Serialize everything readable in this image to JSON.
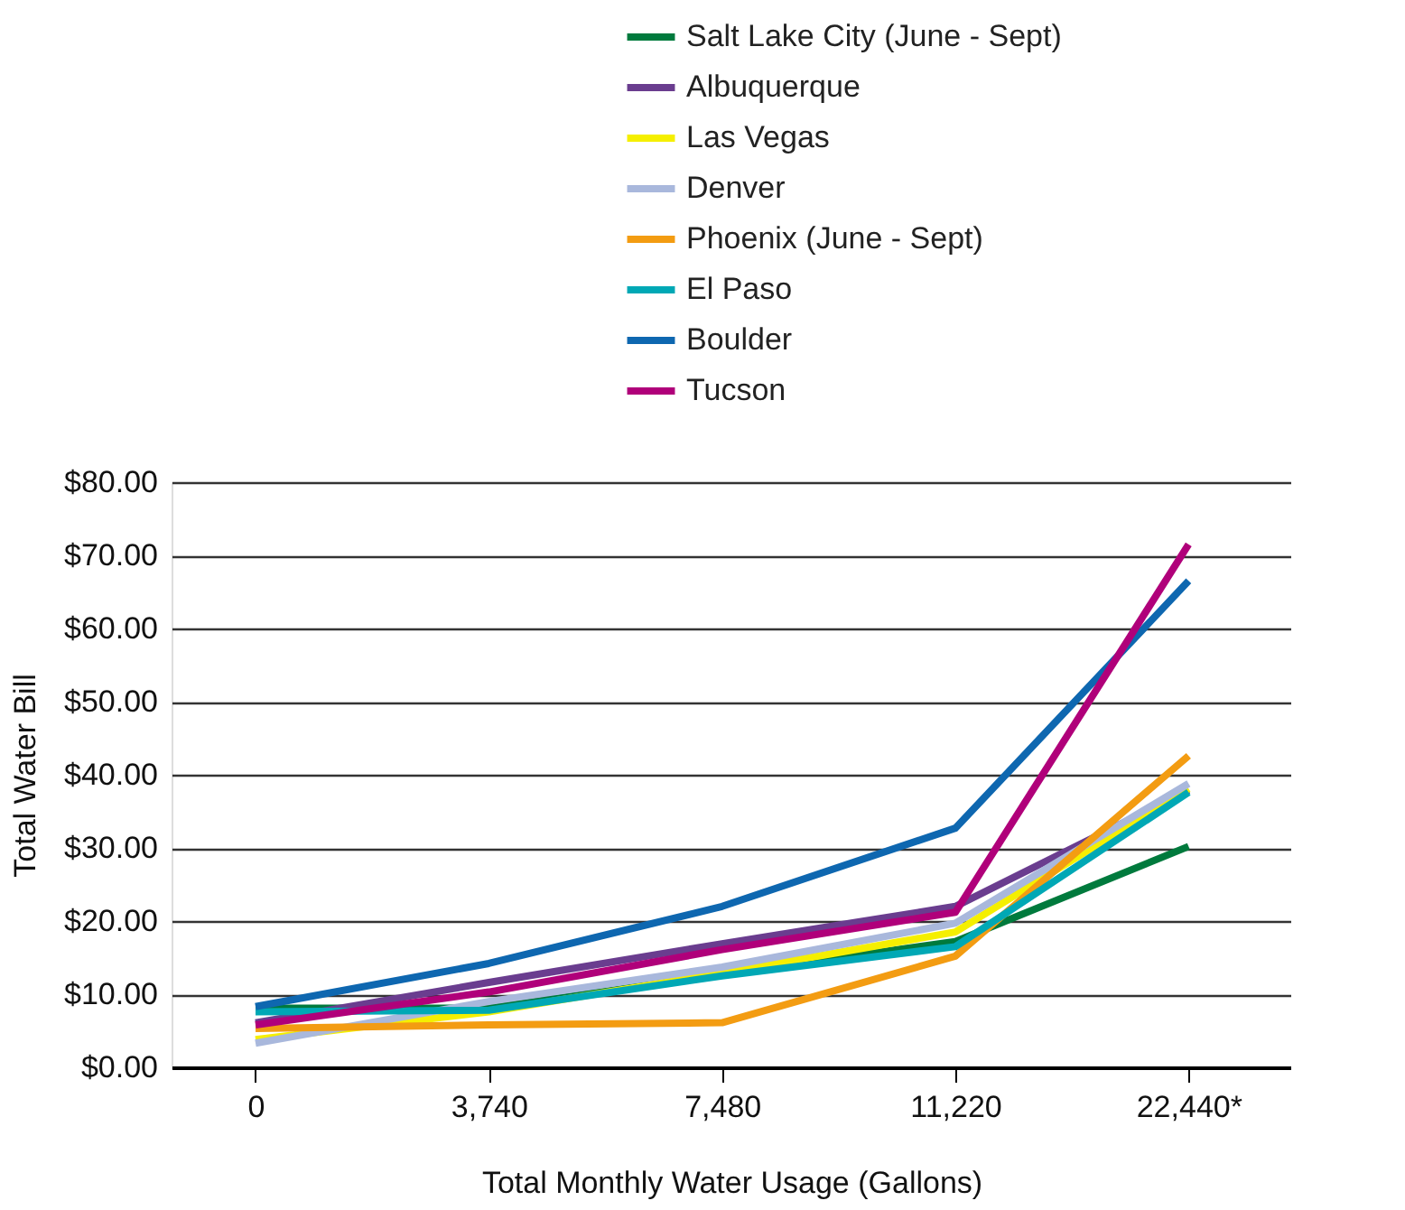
{
  "chart_data": {
    "type": "line",
    "xlabel": "Total Monthly Water Usage (Gallons)",
    "ylabel": "Total Water Bill",
    "categories": [
      "0",
      "3,740",
      "7,480",
      "11,220",
      "22,440*"
    ],
    "ylim": [
      0,
      80
    ],
    "yticks": [
      {
        "value": 0,
        "label": "$0.00"
      },
      {
        "value": 10,
        "label": "$10.00"
      },
      {
        "value": 20,
        "label": "$20.00"
      },
      {
        "value": 30,
        "label": "$30.00"
      },
      {
        "value": 40,
        "label": "$40.00"
      },
      {
        "value": 50,
        "label": "$50.00"
      },
      {
        "value": 60,
        "label": "$60.00"
      },
      {
        "value": 70,
        "label": "$70.00"
      },
      {
        "value": 80,
        "label": "$80.00"
      }
    ],
    "grid": "y",
    "legend": "top right",
    "marker": "none",
    "line_style": "solid",
    "series": [
      {
        "name": "Salt Lake City (June - Sept)",
        "color": "#007a3d",
        "values": [
          8.1,
          8.1,
          12.7,
          17.2,
          30.2
        ]
      },
      {
        "name": "Albuquerque",
        "color": "#6a3d8f",
        "values": [
          6.1,
          11.6,
          16.9,
          22.0,
          37.9
        ]
      },
      {
        "name": "Las Vegas",
        "color": "#f5ef00",
        "values": [
          3.8,
          7.6,
          12.9,
          18.5,
          38.1
        ]
      },
      {
        "name": "Denver",
        "color": "#a9b8dc",
        "values": [
          3.3,
          9.0,
          13.7,
          19.7,
          38.8
        ]
      },
      {
        "name": "Phoenix (June - Sept)",
        "color": "#f39c12",
        "values": [
          5.3,
          5.8,
          6.1,
          15.2,
          42.6
        ]
      },
      {
        "name": "El Paso",
        "color": "#00a8b5",
        "values": [
          7.6,
          7.8,
          12.5,
          16.5,
          37.6
        ]
      },
      {
        "name": "Boulder",
        "color": "#0e67b0",
        "values": [
          8.3,
          14.2,
          22.0,
          32.7,
          66.5
        ]
      },
      {
        "name": "Tucson",
        "color": "#b0007a",
        "values": [
          5.8,
          10.3,
          16.1,
          21.2,
          71.5
        ]
      }
    ]
  }
}
